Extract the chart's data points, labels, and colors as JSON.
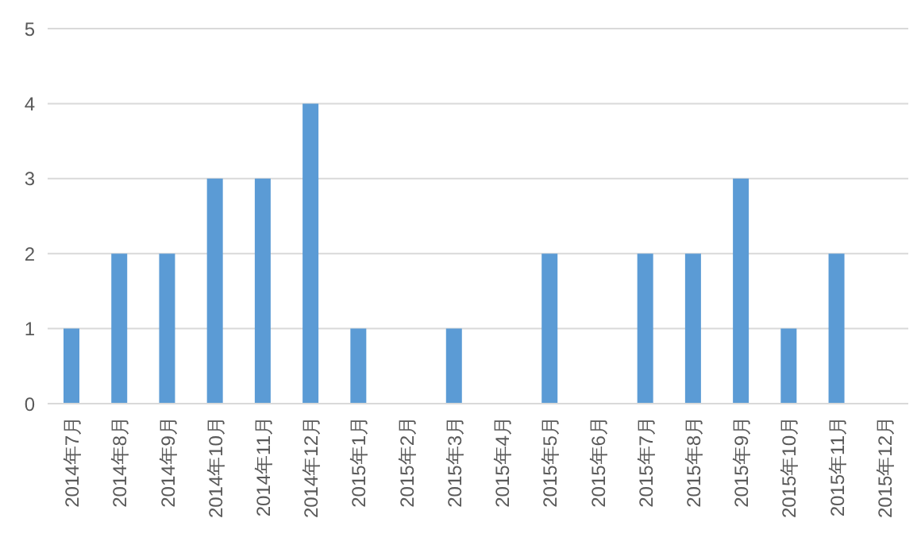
{
  "chart_data": {
    "type": "bar",
    "categories": [
      "2014年7月",
      "2014年8月",
      "2014年9月",
      "2014年10月",
      "2014年11月",
      "2014年12月",
      "2015年1月",
      "2015年2月",
      "2015年3月",
      "2015年4月",
      "2015年5月",
      "2015年6月",
      "2015年7月",
      "2015年8月",
      "2015年9月",
      "2015年10月",
      "2015年11月",
      "2015年12月"
    ],
    "values": [
      1,
      2,
      2,
      3,
      3,
      4,
      1,
      0,
      1,
      0,
      2,
      0,
      2,
      2,
      3,
      1,
      2,
      0
    ],
    "color": "#5b9bd5",
    "ylim": [
      0,
      5
    ],
    "yticks": [
      0,
      1,
      2,
      3,
      4,
      5
    ],
    "grid": "y",
    "legend": false
  }
}
